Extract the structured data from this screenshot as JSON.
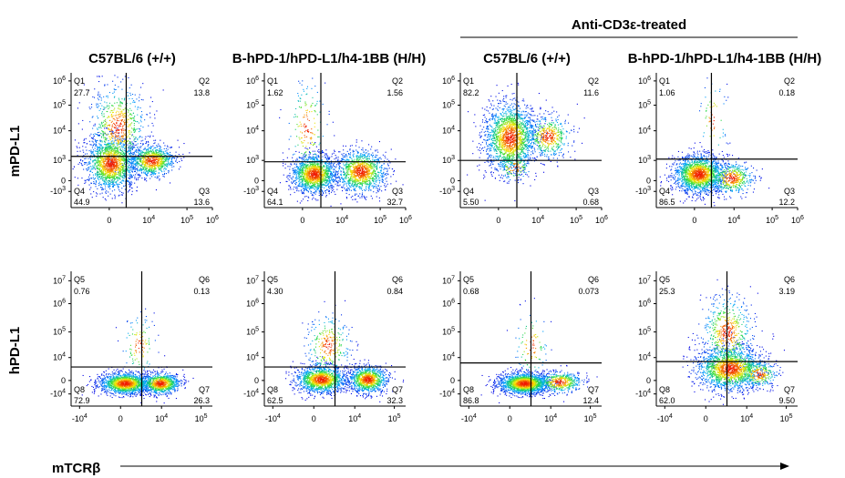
{
  "treated_header": "Anti-CD3ε-treated",
  "columns": [
    "C57BL/6 (+/+)",
    "B-hPD-1/hPD-L1/h4-1BB (H/H)",
    "C57BL/6 (+/+)",
    "B-hPD-1/hPD-L1/h4-1BB (H/H)"
  ],
  "row_labels": [
    "mPD-L1",
    "hPD-L1"
  ],
  "x_axis_label": "mTCRβ",
  "chart_data": [
    {
      "type": "scatter",
      "panel": "top-1",
      "ylabel": "mPD-L1",
      "xlabel": "mTCRβ",
      "x_ticks": [
        "0",
        "10^4",
        "10^5",
        "10^6"
      ],
      "y_ticks": [
        "-10^3",
        "0",
        "10^3",
        "10^4",
        "10^5",
        "10^6"
      ],
      "quadrants": [
        {
          "name": "Q1",
          "value": "27.7"
        },
        {
          "name": "Q2",
          "value": "13.8"
        },
        {
          "name": "Q3",
          "value": "13.6"
        },
        {
          "name": "Q4",
          "value": "44.9"
        }
      ]
    },
    {
      "type": "scatter",
      "panel": "top-2",
      "ylabel": "mPD-L1",
      "xlabel": "mTCRβ",
      "x_ticks": [
        "0",
        "10^4",
        "10^5",
        "10^6"
      ],
      "y_ticks": [
        "-10^3",
        "0",
        "10^3",
        "10^4",
        "10^5",
        "10^6"
      ],
      "quadrants": [
        {
          "name": "Q1",
          "value": "1.62"
        },
        {
          "name": "Q2",
          "value": "1.56"
        },
        {
          "name": "Q3",
          "value": "32.7"
        },
        {
          "name": "Q4",
          "value": "64.1"
        }
      ]
    },
    {
      "type": "scatter",
      "panel": "top-3",
      "ylabel": "mPD-L1",
      "xlabel": "mTCRβ",
      "x_ticks": [
        "0",
        "10^4",
        "10^5",
        "10^6"
      ],
      "y_ticks": [
        "-10^3",
        "0",
        "10^3",
        "10^4",
        "10^5",
        "10^6"
      ],
      "quadrants": [
        {
          "name": "Q1",
          "value": "82.2"
        },
        {
          "name": "Q2",
          "value": "11.6"
        },
        {
          "name": "Q3",
          "value": "0.68"
        },
        {
          "name": "Q4",
          "value": "5.50"
        }
      ]
    },
    {
      "type": "scatter",
      "panel": "top-4",
      "ylabel": "mPD-L1",
      "xlabel": "mTCRβ",
      "x_ticks": [
        "0",
        "10^4",
        "10^5",
        "10^6"
      ],
      "y_ticks": [
        "-10^3",
        "0",
        "10^3",
        "10^4",
        "10^5",
        "10^6"
      ],
      "quadrants": [
        {
          "name": "Q1",
          "value": "1.06"
        },
        {
          "name": "Q2",
          "value": "0.18"
        },
        {
          "name": "Q3",
          "value": "12.2"
        },
        {
          "name": "Q4",
          "value": "86.5"
        }
      ]
    },
    {
      "type": "scatter",
      "panel": "bottom-1",
      "ylabel": "hPD-L1",
      "xlabel": "mTCRβ",
      "x_ticks": [
        "-10^4",
        "0",
        "10^4",
        "10^5"
      ],
      "y_ticks": [
        "-10^4",
        "0",
        "10^4",
        "10^5",
        "10^6",
        "10^7"
      ],
      "quadrants": [
        {
          "name": "Q5",
          "value": "0.76"
        },
        {
          "name": "Q6",
          "value": "0.13"
        },
        {
          "name": "Q7",
          "value": "26.3"
        },
        {
          "name": "Q8",
          "value": "72.9"
        }
      ]
    },
    {
      "type": "scatter",
      "panel": "bottom-2",
      "ylabel": "hPD-L1",
      "xlabel": "mTCRβ",
      "x_ticks": [
        "-10^4",
        "0",
        "10^4",
        "10^5"
      ],
      "y_ticks": [
        "-10^4",
        "0",
        "10^4",
        "10^5",
        "10^6",
        "10^7"
      ],
      "quadrants": [
        {
          "name": "Q5",
          "value": "4.30"
        },
        {
          "name": "Q6",
          "value": "0.84"
        },
        {
          "name": "Q7",
          "value": "32.3"
        },
        {
          "name": "Q8",
          "value": "62.5"
        }
      ]
    },
    {
      "type": "scatter",
      "panel": "bottom-3",
      "ylabel": "hPD-L1",
      "xlabel": "mTCRβ",
      "x_ticks": [
        "-10^4",
        "0",
        "10^4",
        "10^5"
      ],
      "y_ticks": [
        "-10^4",
        "0",
        "10^4",
        "10^5",
        "10^6",
        "10^7"
      ],
      "quadrants": [
        {
          "name": "Q5",
          "value": "0.68"
        },
        {
          "name": "Q6",
          "value": "0.073"
        },
        {
          "name": "Q7",
          "value": "12.4"
        },
        {
          "name": "Q8",
          "value": "86.8"
        }
      ]
    },
    {
      "type": "scatter",
      "panel": "bottom-4",
      "ylabel": "hPD-L1",
      "xlabel": "mTCRβ",
      "x_ticks": [
        "-10^4",
        "0",
        "10^4",
        "10^5"
      ],
      "y_ticks": [
        "-10^4",
        "0",
        "10^4",
        "10^5",
        "10^6",
        "10^7"
      ],
      "quadrants": [
        {
          "name": "Q5",
          "value": "25.3"
        },
        {
          "name": "Q6",
          "value": "3.19"
        },
        {
          "name": "Q7",
          "value": "9.50"
        },
        {
          "name": "Q8",
          "value": "62.0"
        }
      ]
    }
  ]
}
